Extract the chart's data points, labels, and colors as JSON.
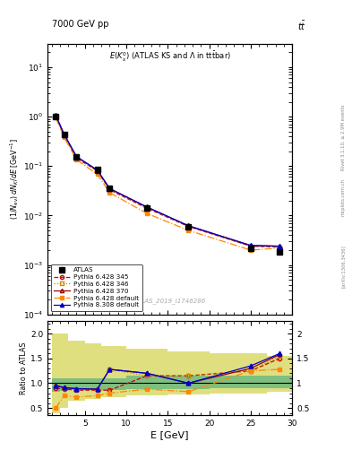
{
  "title_top": "7000 GeV pp",
  "title_top_right": "tt",
  "plot_title": "E(K$_s^0$) (ATLAS KS and \\Lambda in ttbar)",
  "watermark": "ATLAS_2019_I1746286",
  "rivet_label": "Rivet 3.1.10, ≥ 2.9M events",
  "arxiv_label": "[arXiv:1306.3436]",
  "mcplots_label": "mcplots.cern.ch",
  "xlabel": "E [GeV]",
  "ylabel": "(1/N_{ev}) dN_K/dE [GeV$^{-1}$]",
  "ratio_ylabel": "Ratio to ATLAS",
  "x_data": [
    1.5,
    2.5,
    4.0,
    6.5,
    8.0,
    12.5,
    17.5,
    25.0,
    28.5
  ],
  "atlas_y": [
    1.02,
    0.44,
    0.155,
    0.085,
    0.035,
    0.014,
    0.006,
    0.0022,
    0.0018
  ],
  "py345_y": [
    1.0,
    0.42,
    0.145,
    0.08,
    0.033,
    0.014,
    0.006,
    0.0024,
    0.0023
  ],
  "py346_y": [
    1.0,
    0.42,
    0.148,
    0.08,
    0.034,
    0.014,
    0.0062,
    0.0024,
    0.0023
  ],
  "py370_y": [
    1.05,
    0.44,
    0.155,
    0.083,
    0.035,
    0.0148,
    0.0062,
    0.00248,
    0.0024
  ],
  "py_def_y": [
    0.95,
    0.38,
    0.135,
    0.068,
    0.029,
    0.011,
    0.005,
    0.002,
    0.0022
  ],
  "py8_y": [
    1.05,
    0.44,
    0.155,
    0.083,
    0.035,
    0.0148,
    0.0062,
    0.00248,
    0.0024
  ],
  "ratio_py345": [
    0.9,
    0.88,
    0.86,
    0.86,
    0.86,
    1.15,
    1.15,
    1.25,
    1.5
  ],
  "ratio_py346": [
    0.95,
    0.9,
    0.88,
    0.88,
    1.28,
    1.15,
    1.15,
    1.25,
    1.55
  ],
  "ratio_py370": [
    0.95,
    0.91,
    0.89,
    0.88,
    1.28,
    1.2,
    1.0,
    1.3,
    1.58
  ],
  "ratio_py_def": [
    0.5,
    0.75,
    0.72,
    0.75,
    0.8,
    0.88,
    0.83,
    1.25,
    1.28
  ],
  "ratio_py8": [
    0.95,
    0.91,
    0.89,
    0.88,
    1.28,
    1.2,
    1.0,
    1.35,
    1.6
  ],
  "band_edges": [
    1.0,
    2.0,
    3.0,
    5.0,
    7.0,
    10.0,
    15.0,
    20.0,
    27.0,
    30.0
  ],
  "band_green_lo": [
    0.82,
    0.84,
    0.86,
    0.88,
    0.86,
    0.88,
    0.88,
    0.9,
    0.9
  ],
  "band_green_hi": [
    1.1,
    1.1,
    1.1,
    1.1,
    1.1,
    1.15,
    1.15,
    1.15,
    1.15
  ],
  "band_yellow_lo": [
    0.4,
    0.5,
    0.65,
    0.68,
    0.72,
    0.75,
    0.78,
    0.8,
    0.82
  ],
  "band_yellow_hi": [
    2.0,
    2.0,
    1.85,
    1.8,
    1.75,
    1.7,
    1.65,
    1.6,
    1.55
  ],
  "color_atlas": "#000000",
  "color_py345": "#cc0000",
  "color_py346": "#cc8800",
  "color_py370": "#990000",
  "color_py_def": "#ff8800",
  "color_py8": "#0000cc",
  "color_green": "#7fbf7f",
  "color_yellow": "#dfdf80",
  "ylim_main": [
    0.0001,
    30
  ],
  "ylim_ratio": [
    0.35,
    2.25
  ],
  "yticks_ratio": [
    0.5,
    1.0,
    1.5,
    2.0
  ],
  "xlim": [
    0.5,
    30
  ]
}
